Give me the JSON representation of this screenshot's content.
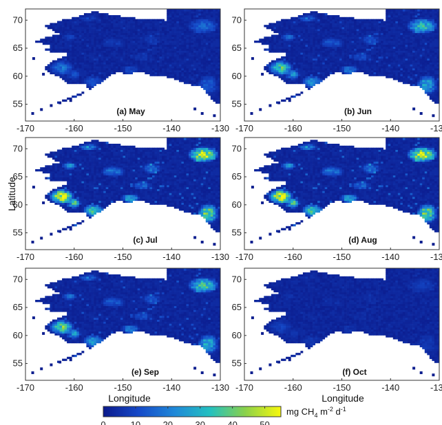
{
  "figure": {
    "ylabel": "Latitude",
    "xlabel": "Longitude",
    "x_ticks": [
      "-170",
      "-160",
      "-150",
      "-140",
      "-130"
    ],
    "y_ticks": [
      "70",
      "65",
      "60",
      "55"
    ],
    "x_range": [
      -170,
      -130
    ],
    "y_range": [
      52,
      72
    ],
    "colorbar": {
      "ticks": [
        "0",
        "10",
        "20",
        "30",
        "40",
        "50"
      ],
      "range": [
        0,
        55
      ],
      "unit_main": "mg CH",
      "unit_sub": "4",
      "unit_m": " m",
      "unit_m_exp": "-2",
      "unit_d": " d",
      "unit_d_exp": "-1",
      "colormap": "parula",
      "colors": [
        "#0b1a8c",
        "#1549c8",
        "#1f88d8",
        "#23c0c0",
        "#8bd14a",
        "#f8f80c"
      ]
    }
  },
  "panels": [
    {
      "label": "(a) May",
      "intensity": 0.25
    },
    {
      "label": "(b) Jun",
      "intensity": 0.55
    },
    {
      "label": "(c) Jul",
      "intensity": 0.85
    },
    {
      "label": "(d) Aug",
      "intensity": 0.85
    },
    {
      "label": "(e) Sep",
      "intensity": 0.6
    },
    {
      "label": "(f) Oct",
      "intensity": 0.1
    }
  ],
  "colors": {
    "land_base": "#0d1f8f",
    "background": "#ffffff"
  }
}
